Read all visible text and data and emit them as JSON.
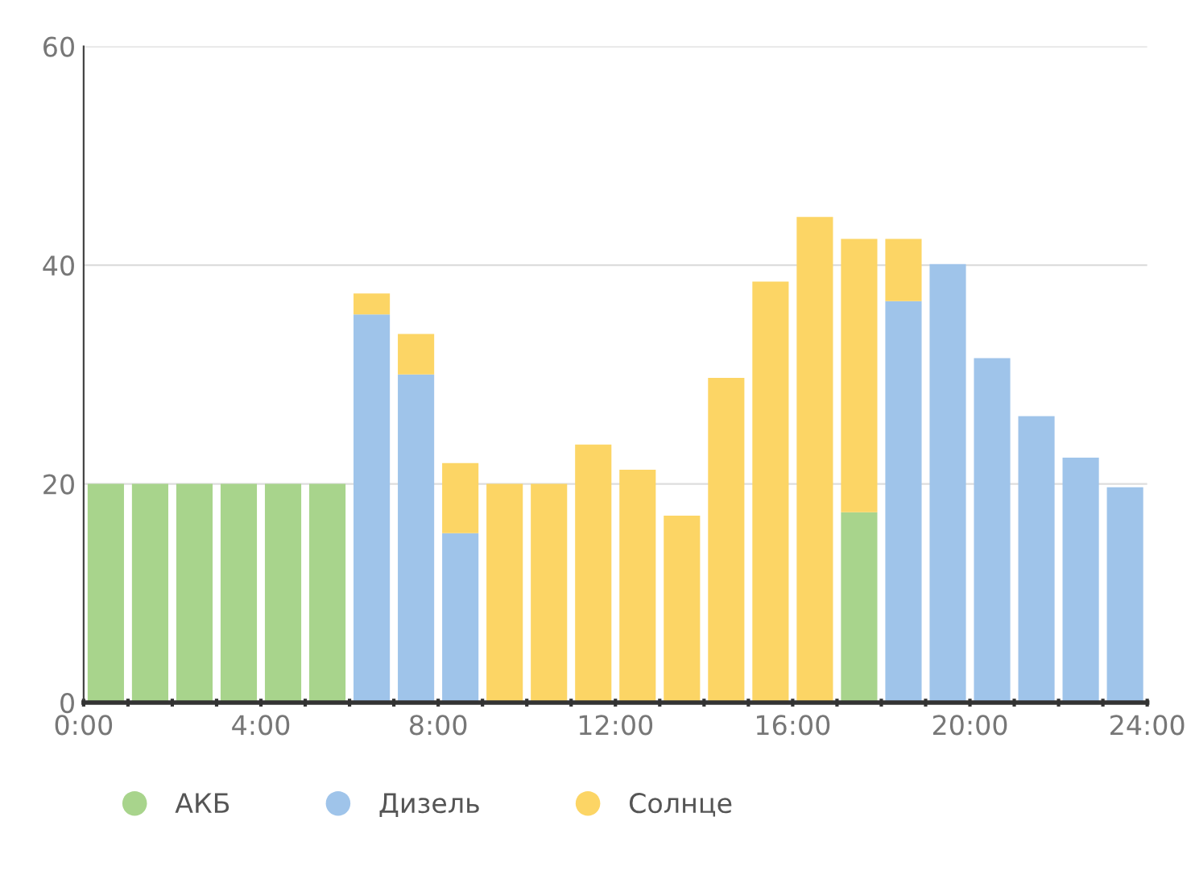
{
  "chart_data": {
    "type": "bar",
    "stacked": true,
    "x": [
      0.5,
      1.5,
      2.5,
      3.5,
      4.5,
      5.5,
      6.5,
      7.5,
      8.5,
      9.5,
      10.5,
      11.5,
      12.5,
      13.5,
      14.5,
      15.5,
      16.5,
      17.5,
      18.5,
      19.5,
      20.5,
      21.5,
      22.5,
      23.5
    ],
    "series": [
      {
        "name": "АКБ",
        "color": "#a8d48c",
        "values": [
          20,
          20,
          20,
          20,
          20,
          20,
          0,
          0,
          0,
          0,
          0,
          0,
          0,
          0,
          0,
          0,
          0,
          17.4,
          0,
          0,
          0,
          0,
          0,
          0
        ]
      },
      {
        "name": "Дизель",
        "color": "#9fc4ea",
        "values": [
          0,
          0,
          0,
          0,
          0,
          0,
          35.5,
          30,
          15.5,
          0,
          0,
          0,
          0,
          0,
          0,
          0,
          0,
          0,
          36.7,
          40.1,
          31.5,
          26.2,
          22.4,
          19.7
        ]
      },
      {
        "name": "Солнце",
        "color": "#fcd565",
        "values": [
          0,
          0,
          0,
          0,
          0,
          0,
          1.9,
          3.7,
          6.4,
          20,
          20,
          23.6,
          21.3,
          17.1,
          29.7,
          38.5,
          44.4,
          25,
          5.7,
          0,
          0,
          0,
          0,
          0
        ]
      }
    ],
    "xlim": [
      0,
      24
    ],
    "xticks": [
      {
        "value": 0,
        "label": "0:00"
      },
      {
        "value": 1,
        "label": null
      },
      {
        "value": 2,
        "label": null
      },
      {
        "value": 3,
        "label": null
      },
      {
        "value": 4,
        "label": "4:00"
      },
      {
        "value": 5,
        "label": null
      },
      {
        "value": 6,
        "label": null
      },
      {
        "value": 7,
        "label": null
      },
      {
        "value": 8,
        "label": "8:00"
      },
      {
        "value": 9,
        "label": null
      },
      {
        "value": 10,
        "label": null
      },
      {
        "value": 11,
        "label": null
      },
      {
        "value": 12,
        "label": "12:00"
      },
      {
        "value": 13,
        "label": null
      },
      {
        "value": 14,
        "label": null
      },
      {
        "value": 15,
        "label": null
      },
      {
        "value": 16,
        "label": "16:00"
      },
      {
        "value": 17,
        "label": null
      },
      {
        "value": 18,
        "label": null
      },
      {
        "value": 19,
        "label": null
      },
      {
        "value": 20,
        "label": "20:00"
      },
      {
        "value": 21,
        "label": null
      },
      {
        "value": 22,
        "label": null
      },
      {
        "value": 23,
        "label": null
      },
      {
        "value": 24,
        "label": "24:00"
      }
    ],
    "ylim": [
      0,
      60
    ],
    "yticks": [
      0,
      20,
      40,
      60
    ],
    "grid": "y",
    "legend": "bottom left"
  }
}
